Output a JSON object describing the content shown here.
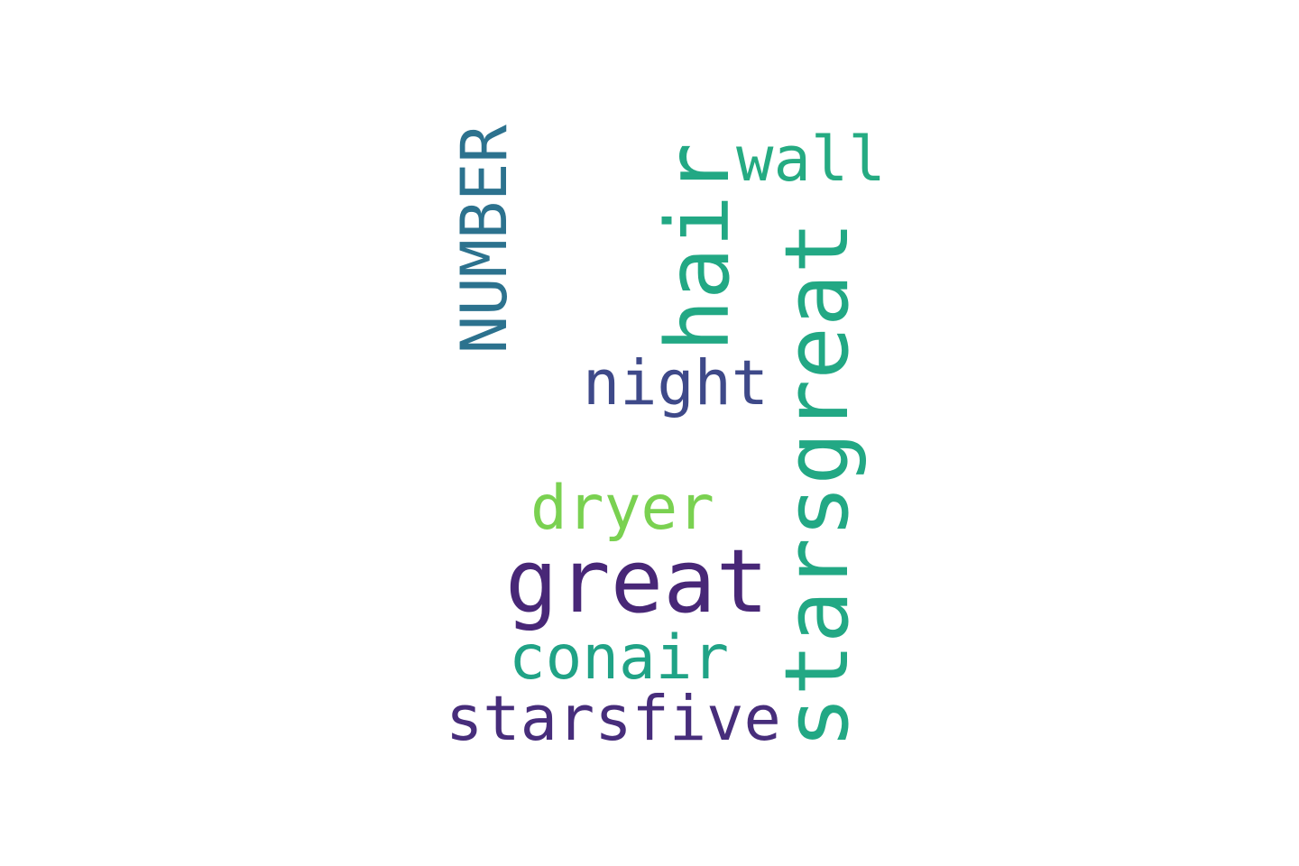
{
  "words": [
    {
      "text": "great",
      "color": "#482777",
      "vertical": false
    },
    {
      "text": "starsgreat",
      "color": "#22a884",
      "vertical": true
    },
    {
      "text": "hair",
      "color": "#22a884",
      "vertical": true
    },
    {
      "text": "starsfive",
      "color": "#472d7b",
      "vertical": false
    },
    {
      "text": "conair",
      "color": "#20a386",
      "vertical": false
    },
    {
      "text": "dryer",
      "color": "#7ad151",
      "vertical": false
    },
    {
      "text": "night",
      "color": "#3e4989",
      "vertical": false
    },
    {
      "text": "NUMBER",
      "color": "#2c728e",
      "vertical": true
    },
    {
      "text": "wall",
      "color": "#25ab82",
      "vertical": false
    }
  ]
}
